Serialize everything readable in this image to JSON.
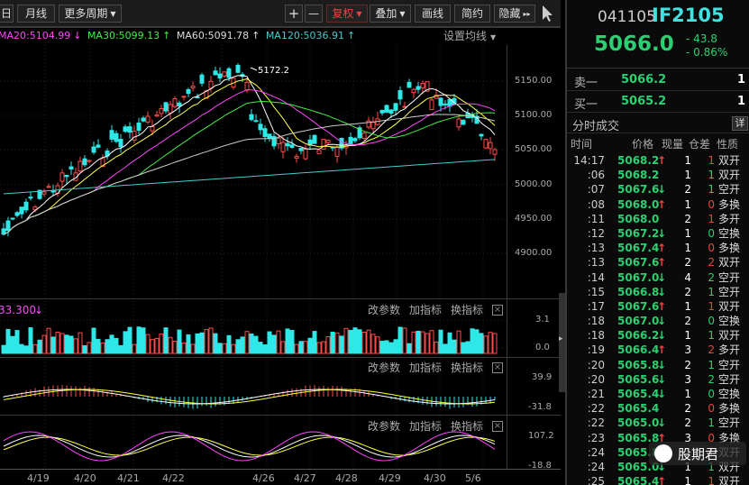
{
  "toolbar": {
    "d": "日",
    "month": "月线",
    "more": "更多周期",
    "plus": "+",
    "minus": "—",
    "fq": "复权",
    "overlay": "叠加",
    "draw": "画线",
    "simple": "简约",
    "hide": "隐藏"
  },
  "ma_legend": {
    "ma20": "MA20:5104.99",
    "ma30": "MA30:5099.13",
    "ma60": "MA60:5091.78",
    "ma120": "MA120:5036.91",
    "set": "设置均线",
    "colors": {
      "ma20": "#ff44ff",
      "ma30": "#44ee44",
      "ma60": "#dddddd",
      "ma120": "#44cccc"
    }
  },
  "price_axis": [
    "5150.00",
    "5100.00",
    "5050.00",
    "5000.00",
    "4950.00",
    "4900.00"
  ],
  "high_label": "5172.2",
  "vol_pane": {
    "value": "33.300",
    "params": "改参数",
    "add": "加指标",
    "swap": "换指标",
    "axis_top": "3.1",
    "axis_bot": "0.0"
  },
  "macd_pane": {
    "params": "改参数",
    "add": "加指标",
    "swap": "换指标",
    "axis_top": "39.9",
    "axis_bot": "-31.8"
  },
  "kdj_pane": {
    "params": "改参数",
    "add": "加指标",
    "swap": "换指标",
    "axis_top": "107.2",
    "axis_bot": "-18.8"
  },
  "dates": [
    "4/19",
    "4/20",
    "4/21",
    "4/22",
    "4/26",
    "4/27",
    "4/28",
    "4/29",
    "4/30",
    "5/6"
  ],
  "quote": {
    "code": "041105",
    "symbol": "IF2105",
    "price": "5066.0",
    "change": "- 43.8",
    "pct": "- 0.86%",
    "ask_label": "卖一",
    "ask_price": "5066.2",
    "ask_vol": "1",
    "bid_label": "买一",
    "bid_price": "5065.2",
    "bid_vol": "1",
    "ticks_title": "分时成交",
    "detail": "详",
    "cols": {
      "time": "时间",
      "price": "价格",
      "vol": "现量",
      "oi": "仓差",
      "type": "性质"
    }
  },
  "ticks": [
    {
      "time": "14:17",
      "price": "5068.2",
      "dir": "up",
      "vol": "1",
      "oi": "1",
      "oi_dir": "up",
      "type": "双开"
    },
    {
      "time": ":06",
      "price": "5068.2",
      "dir": "",
      "vol": "1",
      "oi": "1",
      "oi_dir": "dn",
      "type": "双开"
    },
    {
      "time": ":07",
      "price": "5067.6",
      "dir": "dn",
      "vol": "2",
      "oi": "1",
      "oi_dir": "dn",
      "type": "空开"
    },
    {
      "time": ":08",
      "price": "5068.0",
      "dir": "up",
      "vol": "1",
      "oi": "0",
      "oi_dir": "up",
      "type": "多换"
    },
    {
      "time": ":11",
      "price": "5068.0",
      "dir": "",
      "vol": "2",
      "oi": "1",
      "oi_dir": "up",
      "type": "多开"
    },
    {
      "time": ":12",
      "price": "5067.2",
      "dir": "dn",
      "vol": "1",
      "oi": "0",
      "oi_dir": "dn",
      "type": "空换"
    },
    {
      "time": ":13",
      "price": "5067.4",
      "dir": "up",
      "vol": "1",
      "oi": "0",
      "oi_dir": "up",
      "type": "多换"
    },
    {
      "time": ":13",
      "price": "5067.6",
      "dir": "up",
      "vol": "2",
      "oi": "2",
      "oi_dir": "up",
      "type": "双开"
    },
    {
      "time": ":14",
      "price": "5067.0",
      "dir": "dn",
      "vol": "4",
      "oi": "2",
      "oi_dir": "dn",
      "type": "空开"
    },
    {
      "time": ":15",
      "price": "5066.8",
      "dir": "dn",
      "vol": "2",
      "oi": "1",
      "oi_dir": "dn",
      "type": "空开"
    },
    {
      "time": ":17",
      "price": "5067.6",
      "dir": "up",
      "vol": "1",
      "oi": "1",
      "oi_dir": "up",
      "type": "双开"
    },
    {
      "time": ":18",
      "price": "5067.0",
      "dir": "dn",
      "vol": "2",
      "oi": "0",
      "oi_dir": "dn",
      "type": "空换"
    },
    {
      "time": ":18",
      "price": "5066.2",
      "dir": "dn",
      "vol": "1",
      "oi": "1",
      "oi_dir": "dn",
      "type": "双开"
    },
    {
      "time": ":19",
      "price": "5066.4",
      "dir": "up",
      "vol": "3",
      "oi": "2",
      "oi_dir": "up",
      "type": "多开"
    },
    {
      "time": ":20",
      "price": "5065.8",
      "dir": "dn",
      "vol": "2",
      "oi": "1",
      "oi_dir": "dn",
      "type": "空开"
    },
    {
      "time": ":20",
      "price": "5065.6",
      "dir": "dn",
      "vol": "3",
      "oi": "2",
      "oi_dir": "dn",
      "type": "空开"
    },
    {
      "time": ":21",
      "price": "5065.4",
      "dir": "dn",
      "vol": "1",
      "oi": "0",
      "oi_dir": "dn",
      "type": "空换"
    },
    {
      "time": ":22",
      "price": "5065.4",
      "dir": "",
      "vol": "2",
      "oi": "0",
      "oi_dir": "up",
      "type": "多换"
    },
    {
      "time": ":22",
      "price": "5065.0",
      "dir": "dn",
      "vol": "2",
      "oi": "1",
      "oi_dir": "dn",
      "type": "空开"
    },
    {
      "time": ":23",
      "price": "5065.8",
      "dir": "up",
      "vol": "3",
      "oi": "0",
      "oi_dir": "up",
      "type": "多换"
    },
    {
      "time": ":24",
      "price": "5065.8",
      "dir": "",
      "vol": "1",
      "oi": "1",
      "oi_dir": "up",
      "type": "双开"
    },
    {
      "time": ":24",
      "price": "5065.0",
      "dir": "dn",
      "vol": "1",
      "oi": "1",
      "oi_dir": "dn",
      "type": "双开"
    },
    {
      "time": ":25",
      "price": "5065.4",
      "dir": "up",
      "vol": "1",
      "oi": "1",
      "oi_dir": "up",
      "type": "双开"
    }
  ],
  "watermark": "股期君"
}
